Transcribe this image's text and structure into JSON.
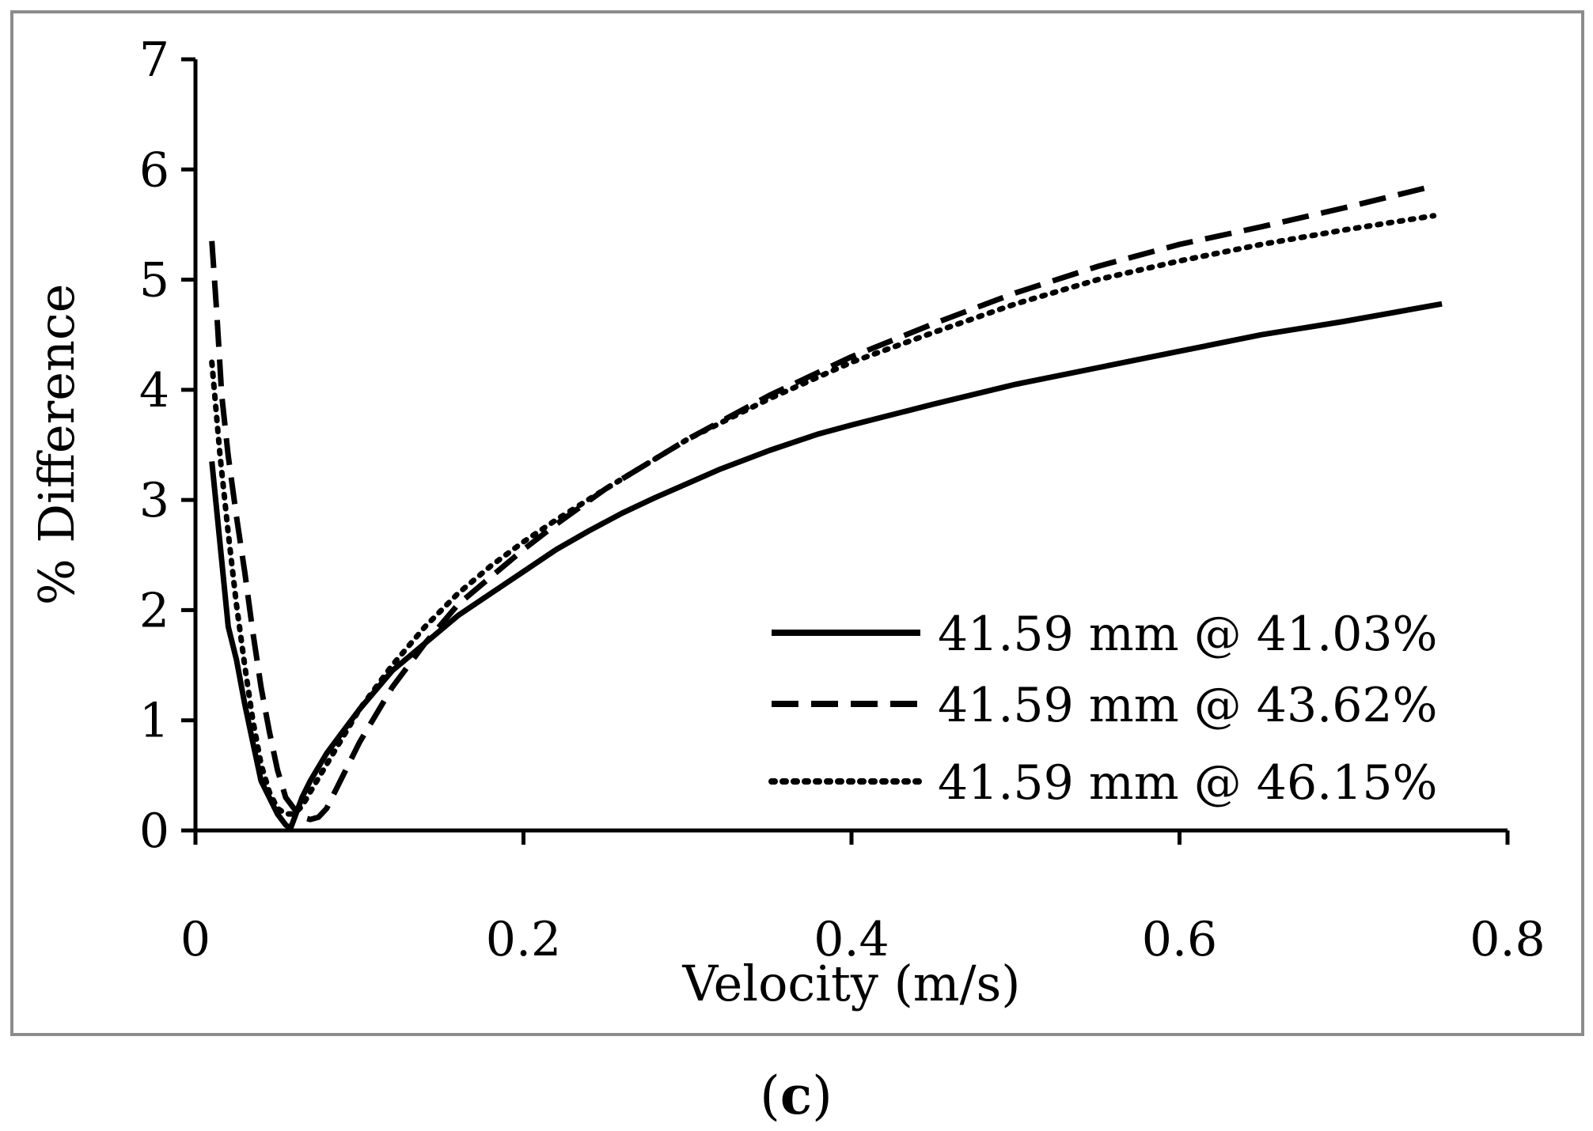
{
  "chart_data": {
    "type": "line",
    "title": "",
    "xlabel": "Velocity (m/s)",
    "ylabel": "% Difference",
    "xlim": [
      0,
      0.8
    ],
    "ylim": [
      0,
      7
    ],
    "xticks": [
      "0",
      "0.2",
      "0.4",
      "0.6",
      "0.8"
    ],
    "yticks": [
      "0",
      "1",
      "2",
      "3",
      "4",
      "5",
      "6",
      "7"
    ],
    "grid": false,
    "legend_position": "bottom-right",
    "series": [
      {
        "name": "41.59 mm @ 41.03%",
        "style": "solid",
        "x": [
          0.01,
          0.015,
          0.02,
          0.025,
          0.03,
          0.035,
          0.04,
          0.045,
          0.05,
          0.055,
          0.058,
          0.06,
          0.065,
          0.07,
          0.08,
          0.09,
          0.1,
          0.12,
          0.14,
          0.16,
          0.18,
          0.2,
          0.22,
          0.24,
          0.26,
          0.28,
          0.3,
          0.32,
          0.35,
          0.38,
          0.4,
          0.45,
          0.5,
          0.55,
          0.6,
          0.65,
          0.7,
          0.76
        ],
        "y": [
          3.35,
          2.6,
          1.85,
          1.55,
          1.15,
          0.8,
          0.45,
          0.3,
          0.15,
          0.05,
          0.02,
          0.1,
          0.3,
          0.45,
          0.7,
          0.9,
          1.1,
          1.45,
          1.7,
          1.95,
          2.15,
          2.35,
          2.55,
          2.72,
          2.88,
          3.02,
          3.15,
          3.28,
          3.45,
          3.6,
          3.68,
          3.87,
          4.05,
          4.2,
          4.35,
          4.5,
          4.62,
          4.78
        ]
      },
      {
        "name": "41.59 mm @ 43.62%",
        "style": "dashed",
        "x": [
          0.01,
          0.013,
          0.016,
          0.02,
          0.025,
          0.03,
          0.035,
          0.04,
          0.045,
          0.05,
          0.055,
          0.06,
          0.065,
          0.07,
          0.075,
          0.08,
          0.09,
          0.1,
          0.12,
          0.14,
          0.16,
          0.18,
          0.2,
          0.22,
          0.25,
          0.3,
          0.35,
          0.4,
          0.45,
          0.5,
          0.55,
          0.6,
          0.65,
          0.7,
          0.755
        ],
        "y": [
          5.35,
          4.7,
          3.95,
          3.4,
          2.85,
          2.35,
          1.8,
          1.3,
          0.9,
          0.55,
          0.3,
          0.2,
          0.12,
          0.1,
          0.12,
          0.2,
          0.5,
          0.8,
          1.3,
          1.7,
          2.05,
          2.3,
          2.55,
          2.78,
          3.1,
          3.55,
          3.95,
          4.3,
          4.6,
          4.88,
          5.12,
          5.32,
          5.48,
          5.65,
          5.85
        ]
      },
      {
        "name": "41.59 mm @ 46.15%",
        "style": "dotted",
        "x": [
          0.01,
          0.015,
          0.02,
          0.025,
          0.03,
          0.035,
          0.04,
          0.045,
          0.05,
          0.055,
          0.06,
          0.065,
          0.07,
          0.08,
          0.09,
          0.1,
          0.12,
          0.14,
          0.16,
          0.18,
          0.2,
          0.22,
          0.25,
          0.3,
          0.35,
          0.4,
          0.45,
          0.5,
          0.55,
          0.6,
          0.65,
          0.7,
          0.755
        ],
        "y": [
          4.25,
          3.4,
          2.7,
          2.05,
          1.5,
          1.0,
          0.6,
          0.35,
          0.2,
          0.15,
          0.15,
          0.22,
          0.35,
          0.6,
          0.85,
          1.1,
          1.5,
          1.85,
          2.15,
          2.4,
          2.62,
          2.82,
          3.1,
          3.55,
          3.92,
          4.25,
          4.52,
          4.78,
          5.0,
          5.17,
          5.32,
          5.45,
          5.58
        ]
      }
    ]
  },
  "caption": {
    "open": "(",
    "letter": "c",
    "close": ")"
  }
}
